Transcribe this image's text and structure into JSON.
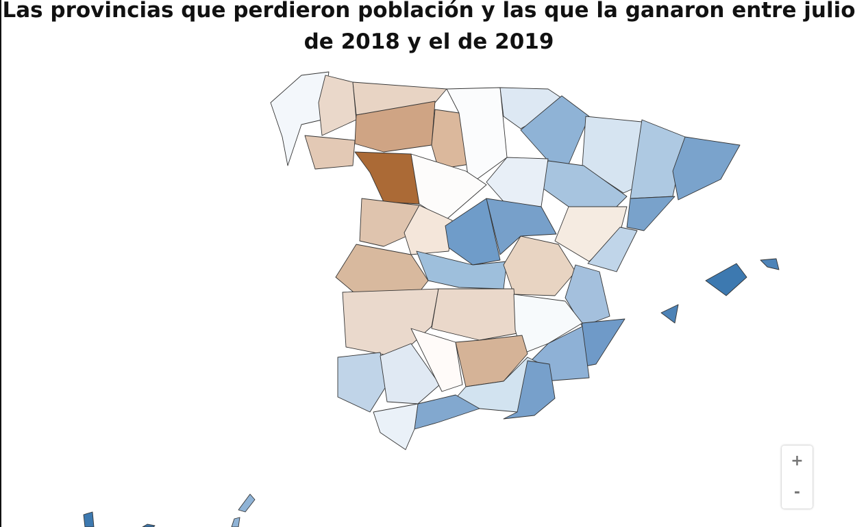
{
  "title_line1": "Las provincias que perdieron población y las que la ganaron entre julio",
  "title_line2": "de 2018 y el de 2019",
  "zoom_controls": {
    "zoom_in": "+",
    "zoom_out": "-"
  },
  "colors": {
    "loss_max": "#ab6a36",
    "neutral": "#ffffff",
    "gain_max": "#3d79b0",
    "border": "#333333"
  }
}
